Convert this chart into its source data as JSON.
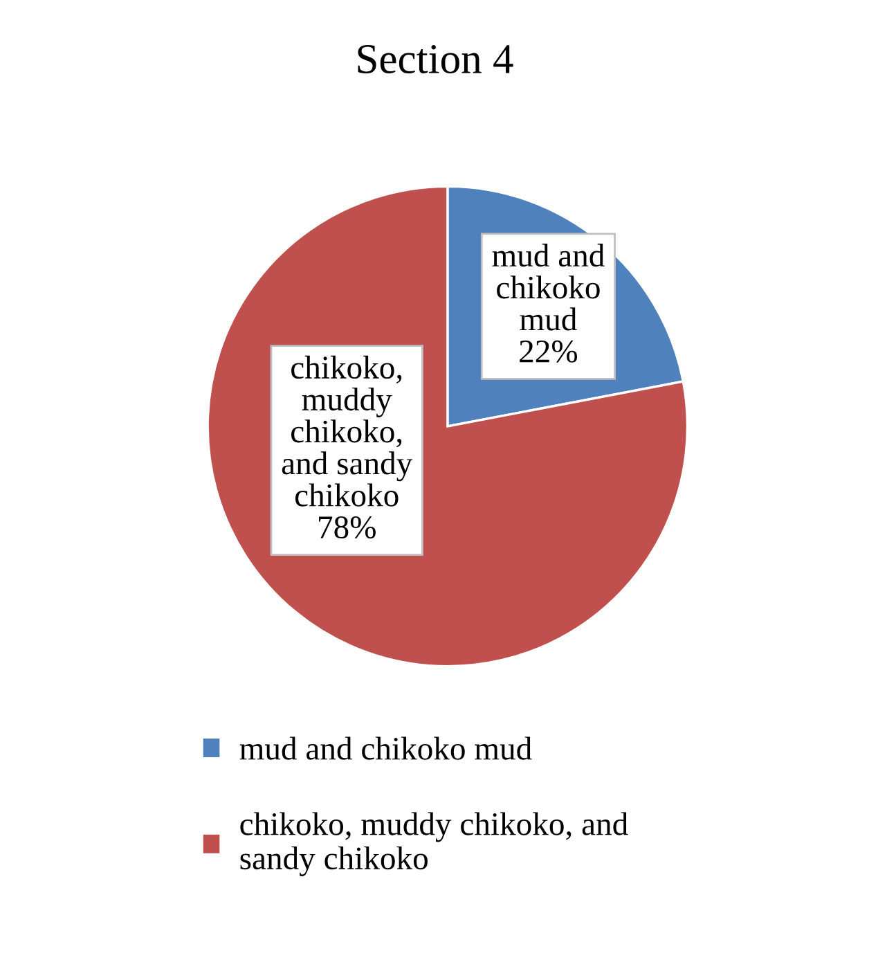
{
  "chart_data": {
    "type": "pie",
    "title": "Section 4",
    "categories": [
      "mud and chikoko mud",
      "chikoko, muddy chikoko, and sandy chikoko"
    ],
    "values": [
      22,
      78
    ],
    "colors": [
      "#4f81bd",
      "#c0504d"
    ],
    "value_labels": [
      "mud and chikoko mud 22%",
      "chikoko, muddy chikoko, and sandy chikoko 78%"
    ],
    "legend": "bottom"
  }
}
